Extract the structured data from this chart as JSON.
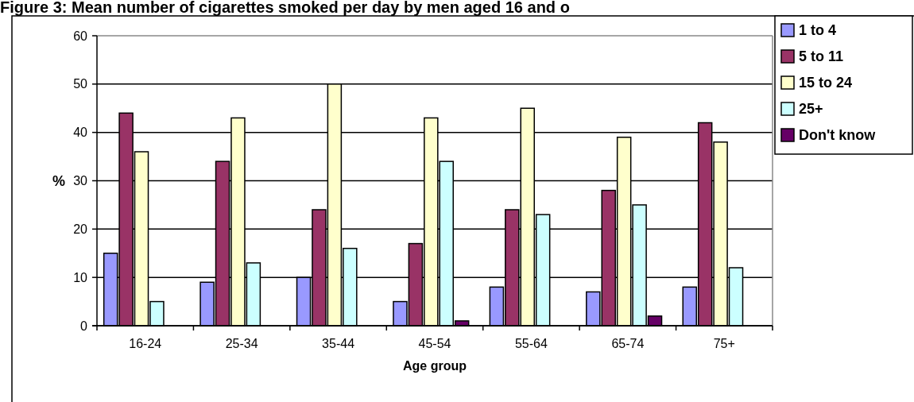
{
  "chart_data": {
    "type": "bar",
    "title": "Figure 3: Mean number of cigarettes smoked per day by men aged 16 and o",
    "xlabel": "Age group",
    "ylabel": "%",
    "categories": [
      "16-24",
      "25-34",
      "35-44",
      "45-54",
      "55-64",
      "65-74",
      "75+"
    ],
    "series": [
      {
        "name": "1 to 4",
        "color": "#9999ff",
        "values": [
          15,
          9,
          10,
          5,
          8,
          7,
          8
        ]
      },
      {
        "name": "5 to 11",
        "color": "#993366",
        "values": [
          44,
          34,
          24,
          17,
          24,
          28,
          42
        ]
      },
      {
        "name": "15 to 24",
        "color": "#ffffcc",
        "values": [
          36,
          43,
          50,
          43,
          45,
          39,
          38
        ]
      },
      {
        "name": "25+",
        "color": "#ccffff",
        "values": [
          5,
          13,
          16,
          34,
          23,
          25,
          12
        ]
      },
      {
        "name": "Don't know",
        "color": "#660066",
        "values": [
          null,
          null,
          null,
          1,
          null,
          2,
          null
        ]
      }
    ],
    "ylim": [
      0,
      60
    ],
    "yticks": [
      0,
      10,
      20,
      30,
      40,
      50,
      60
    ],
    "grid": true,
    "legend": "right"
  }
}
